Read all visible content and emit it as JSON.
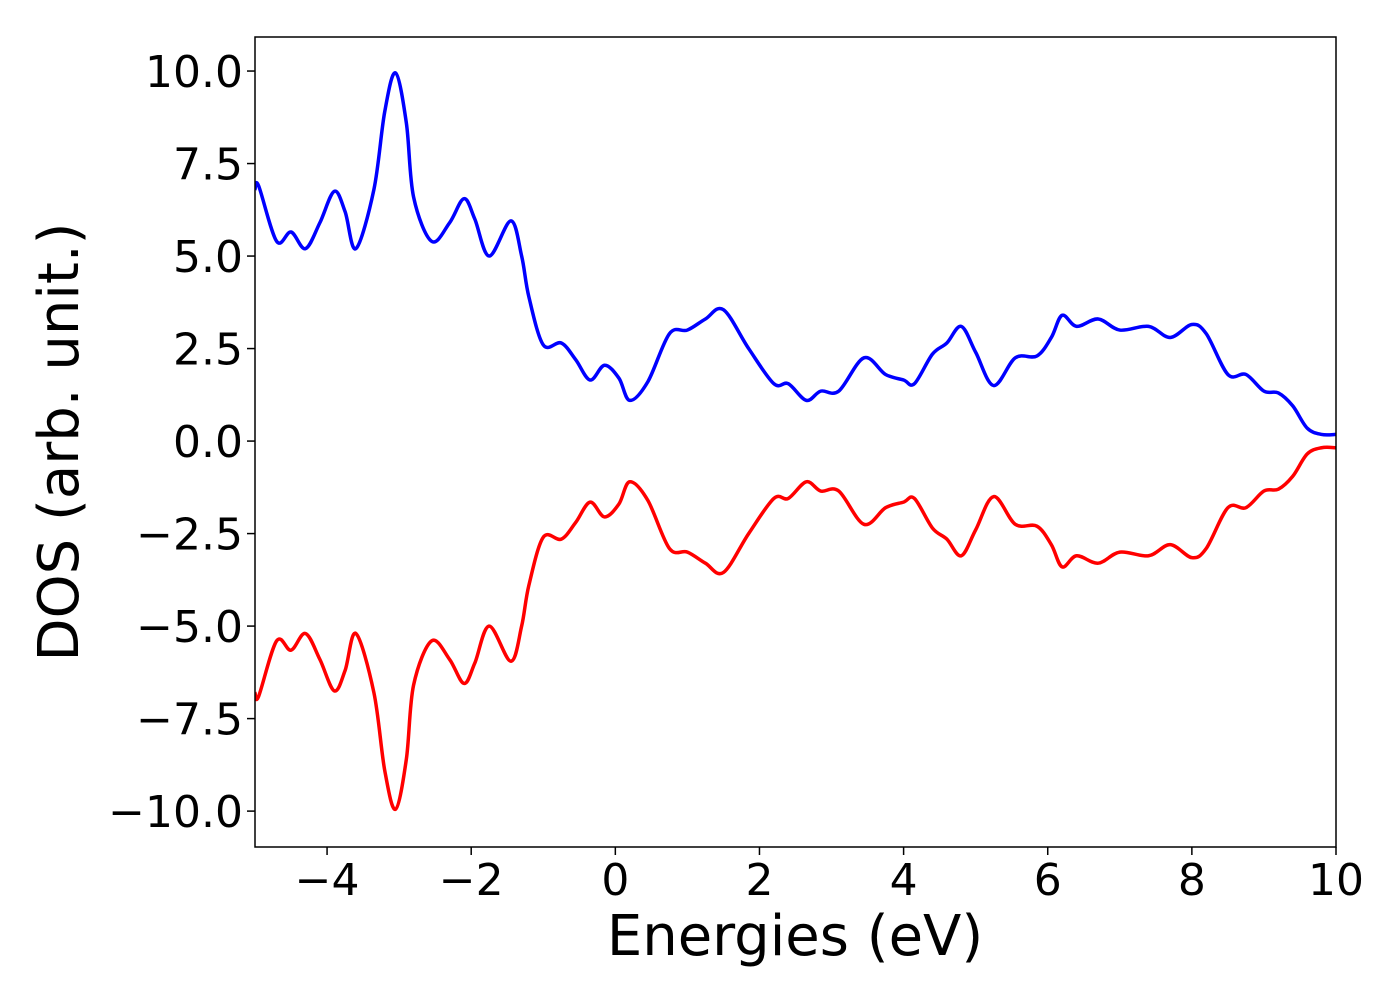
{
  "chart_data": {
    "type": "line",
    "xlabel": "Energies (eV)",
    "ylabel": "DOS (arb. unit.)",
    "x": [
      -5,
      -4.95,
      -4.7,
      -4.5,
      -4.3,
      -4.1,
      -3.9,
      -3.75,
      -3.6,
      -3.35,
      -3.2,
      -3.05,
      -2.9,
      -2.8,
      -2.55,
      -2.3,
      -2.1,
      -1.95,
      -1.75,
      -1.45,
      -1.3,
      -1.2,
      -1.0,
      -0.75,
      -0.55,
      -0.35,
      -0.15,
      0.05,
      0.2,
      0.45,
      0.75,
      1.0,
      1.25,
      1.5,
      1.85,
      2.2,
      2.4,
      2.65,
      2.85,
      3.1,
      3.45,
      3.75,
      4.0,
      4.15,
      4.4,
      4.6,
      4.8,
      5.0,
      5.25,
      5.55,
      5.85,
      6.05,
      6.2,
      6.4,
      6.7,
      7.0,
      7.4,
      7.7,
      8.0,
      8.2,
      8.5,
      8.75,
      9.0,
      9.2,
      9.4,
      9.6,
      9.8,
      10
    ],
    "series": [
      {
        "color": "#0000ff",
        "values": [
          6.8,
          6.9,
          5.4,
          5.65,
          5.2,
          5.9,
          6.75,
          6.2,
          5.2,
          6.8,
          8.9,
          9.95,
          8.6,
          6.6,
          5.4,
          5.9,
          6.55,
          6.0,
          5.0,
          5.95,
          5.0,
          3.9,
          2.6,
          2.65,
          2.2,
          1.65,
          2.05,
          1.7,
          1.1,
          1.6,
          2.9,
          3.0,
          3.3,
          3.55,
          2.5,
          1.55,
          1.55,
          1.1,
          1.35,
          1.35,
          2.25,
          1.8,
          1.65,
          1.55,
          2.35,
          2.65,
          3.1,
          2.4,
          1.5,
          2.25,
          2.3,
          2.8,
          3.4,
          3.1,
          3.3,
          3.0,
          3.1,
          2.8,
          3.15,
          2.9,
          1.8,
          1.8,
          1.35,
          1.3,
          0.95,
          0.35,
          0.18,
          0.18
        ]
      },
      {
        "color": "#ff0000",
        "values": [
          -6.8,
          -6.9,
          -5.4,
          -5.65,
          -5.2,
          -5.9,
          -6.75,
          -6.2,
          -5.2,
          -6.8,
          -8.9,
          -9.95,
          -8.6,
          -6.6,
          -5.4,
          -5.9,
          -6.55,
          -6.0,
          -5.0,
          -5.95,
          -5.0,
          -3.9,
          -2.6,
          -2.65,
          -2.2,
          -1.65,
          -2.05,
          -1.7,
          -1.1,
          -1.6,
          -2.9,
          -3.0,
          -3.3,
          -3.55,
          -2.5,
          -1.55,
          -1.55,
          -1.1,
          -1.35,
          -1.35,
          -2.25,
          -1.8,
          -1.65,
          -1.55,
          -2.35,
          -2.65,
          -3.1,
          -2.4,
          -1.5,
          -2.25,
          -2.3,
          -2.8,
          -3.4,
          -3.1,
          -3.3,
          -3.0,
          -3.1,
          -2.8,
          -3.15,
          -2.9,
          -1.8,
          -1.8,
          -1.35,
          -1.3,
          -0.95,
          -0.35,
          -0.18,
          -0.18
        ]
      }
    ],
    "xlim": [
      -5,
      10
    ],
    "xticks": [
      {
        "value": -4,
        "label": "−4"
      },
      {
        "value": -2,
        "label": "−2"
      },
      0,
      2,
      4,
      6,
      8,
      10
    ],
    "ylim": [
      -10.97,
      10.92
    ],
    "yticks": [
      {
        "value": -10,
        "label": "−10.0"
      },
      {
        "value": -7.5,
        "label": "−7.5"
      },
      {
        "value": -5,
        "label": "−5.0"
      },
      {
        "value": -2.5,
        "label": "−2.5"
      },
      {
        "value": 0,
        "label": "0.0"
      },
      2.5,
      {
        "value": 5,
        "label": "5.0"
      },
      7.5,
      {
        "value": 10,
        "label": "10.0"
      }
    ],
    "grid": false
  }
}
